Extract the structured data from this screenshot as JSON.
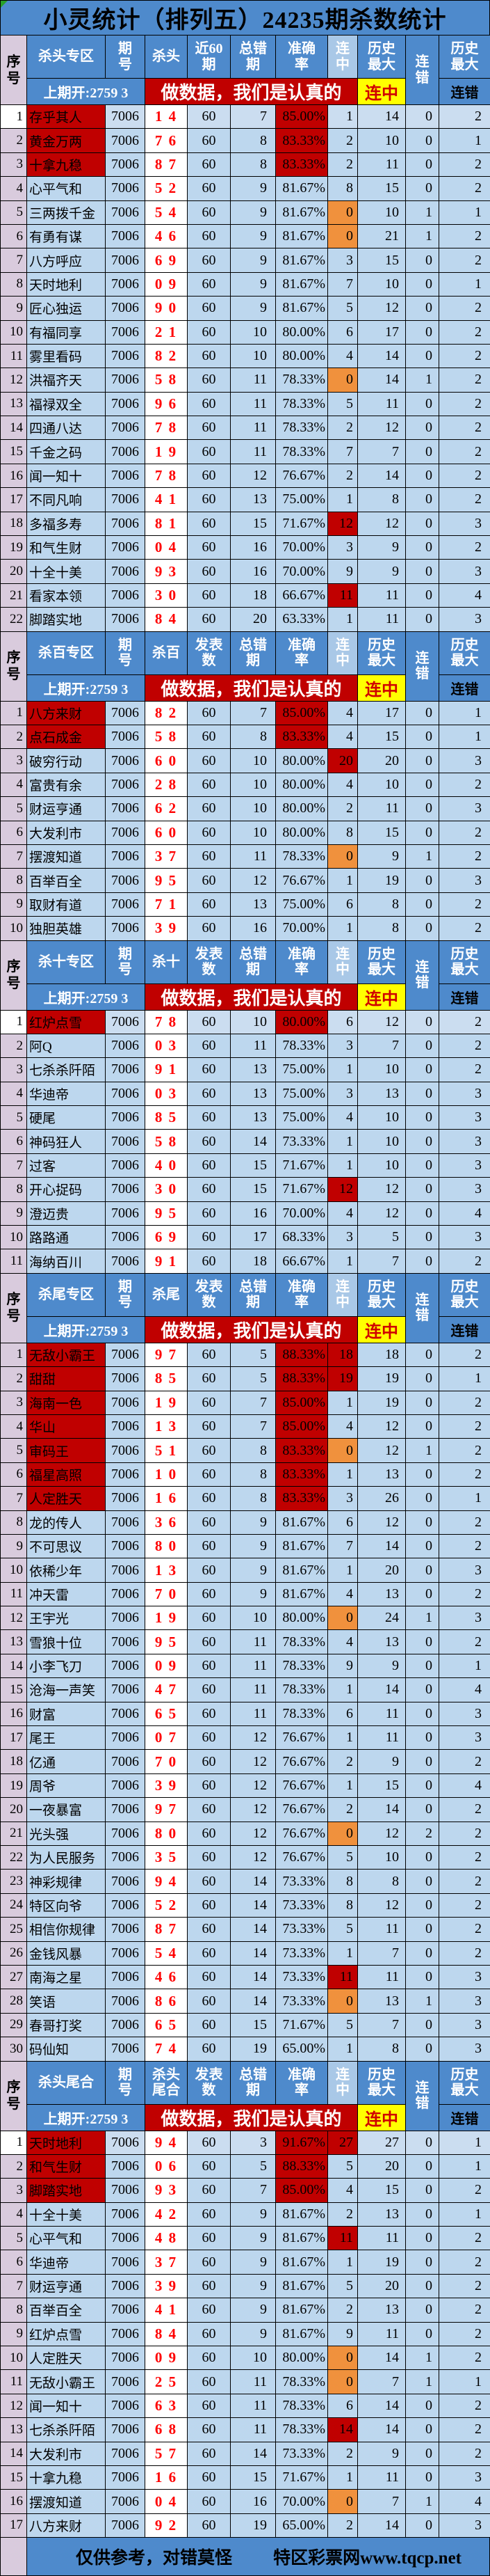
{
  "title": "小灵统计（排列五）24235期杀数统计",
  "colors": {
    "header_blue": "#4E8ACC",
    "cell_light_blue": "#BDD7EE",
    "serial_pink": "#D9CBDD",
    "highlight_dark_red": "#C00000",
    "highlight_orange": "#F0913D",
    "highlight_yellow": "#FFFF00",
    "kill_number_red": "#FF0000"
  },
  "header_common": {
    "serial": "序\n号",
    "qihao": "期\n号",
    "wrong": "总错\n期",
    "accuracy": "准确\n率",
    "lianzhong": "连\n中",
    "hist_max": "历史\n最大",
    "liancuo": "连\n错",
    "hist_max2": "历史\n最大",
    "liancuo_sub": "连错",
    "prev_draw": "上期开:2759 3",
    "banner": "做数据，我们是认真的",
    "lianzhong_yellow": "连中"
  },
  "footer": {
    "left": "仅供参考，对错莫怪",
    "right": "特区彩票网www.tqcp.net"
  },
  "sections": [
    {
      "zone": "杀头专区",
      "kill_label": "杀头",
      "count_label": "近60\n期",
      "rows": [
        [
          1,
          "存乎其人",
          "7006",
          "1 4",
          60,
          7,
          "85.00%",
          1,
          14,
          0,
          2,
          "naw"
        ],
        [
          2,
          "黄金万两",
          "7006",
          "7 6",
          60,
          8,
          "83.33%",
          2,
          10,
          0,
          1,
          "na"
        ],
        [
          3,
          "十拿九稳",
          "7006",
          "8 7",
          60,
          8,
          "83.33%",
          2,
          11,
          0,
          2,
          "na"
        ],
        [
          4,
          "心平气和",
          "7006",
          "5 2",
          60,
          9,
          "81.67%",
          8,
          15,
          0,
          2,
          ""
        ],
        [
          5,
          "三两拨千金",
          "7006",
          "5 4",
          60,
          9,
          "81.67%",
          0,
          10,
          1,
          1,
          "o"
        ],
        [
          6,
          "有勇有谋",
          "7006",
          "4 6",
          60,
          9,
          "81.67%",
          0,
          21,
          1,
          2,
          "o"
        ],
        [
          7,
          "八方呼应",
          "7006",
          "6 9",
          60,
          9,
          "81.67%",
          3,
          15,
          0,
          2,
          ""
        ],
        [
          8,
          "天时地利",
          "7006",
          "0 9",
          60,
          9,
          "81.67%",
          7,
          10,
          0,
          1,
          ""
        ],
        [
          9,
          "匠心独运",
          "7006",
          "9 0",
          60,
          9,
          "81.67%",
          5,
          12,
          0,
          2,
          ""
        ],
        [
          10,
          "有福同享",
          "7006",
          "2 1",
          60,
          10,
          "80.00%",
          6,
          17,
          0,
          2,
          ""
        ],
        [
          11,
          "雾里看码",
          "7006",
          "8 2",
          60,
          10,
          "80.00%",
          4,
          14,
          0,
          2,
          ""
        ],
        [
          12,
          "洪福齐天",
          "7006",
          "5 8",
          60,
          11,
          "78.33%",
          0,
          14,
          1,
          2,
          "o"
        ],
        [
          13,
          "福禄双全",
          "7006",
          "9 6",
          60,
          11,
          "78.33%",
          5,
          11,
          0,
          2,
          ""
        ],
        [
          14,
          "四通八达",
          "7006",
          "7 8",
          60,
          11,
          "78.33%",
          2,
          12,
          0,
          2,
          ""
        ],
        [
          15,
          "千金之码",
          "7006",
          "1 9",
          60,
          11,
          "78.33%",
          7,
          7,
          0,
          2,
          ""
        ],
        [
          16,
          "闻一知十",
          "7006",
          "7 8",
          60,
          12,
          "76.67%",
          2,
          14,
          0,
          2,
          ""
        ],
        [
          17,
          "不同凡响",
          "7006",
          "4 1",
          60,
          13,
          "75.00%",
          1,
          8,
          0,
          2,
          ""
        ],
        [
          18,
          "多福多寿",
          "7006",
          "8 1",
          60,
          15,
          "71.67%",
          12,
          12,
          0,
          3,
          "r"
        ],
        [
          19,
          "和气生财",
          "7006",
          "0 4",
          60,
          16,
          "70.00%",
          3,
          9,
          0,
          2,
          ""
        ],
        [
          20,
          "十全十美",
          "7006",
          "9 3",
          60,
          16,
          "70.00%",
          9,
          9,
          0,
          3,
          ""
        ],
        [
          21,
          "看家本领",
          "7006",
          "3 0",
          60,
          18,
          "66.67%",
          11,
          11,
          0,
          4,
          "r"
        ],
        [
          22,
          "脚踏实地",
          "7006",
          "8 4",
          60,
          20,
          "63.33%",
          1,
          11,
          0,
          3,
          ""
        ]
      ]
    },
    {
      "zone": "杀百专区",
      "kill_label": "杀百",
      "count_label": "发表\n数",
      "rows": [
        [
          1,
          "八方来财",
          "7006",
          "8 2",
          60,
          7,
          "85.00%",
          4,
          17,
          0,
          1,
          "na"
        ],
        [
          2,
          "点石成金",
          "7006",
          "5 8",
          60,
          8,
          "83.33%",
          4,
          15,
          0,
          1,
          "na"
        ],
        [
          3,
          "破穷行动",
          "7006",
          "6 0",
          60,
          10,
          "80.00%",
          20,
          20,
          0,
          3,
          "r"
        ],
        [
          4,
          "富贵有余",
          "7006",
          "2 8",
          60,
          10,
          "80.00%",
          4,
          10,
          0,
          2,
          ""
        ],
        [
          5,
          "财运亨通",
          "7006",
          "6 2",
          60,
          10,
          "80.00%",
          2,
          11,
          0,
          3,
          ""
        ],
        [
          6,
          "大发利市",
          "7006",
          "6 0",
          60,
          10,
          "80.00%",
          8,
          15,
          0,
          2,
          ""
        ],
        [
          7,
          "摆渡知道",
          "7006",
          "3 7",
          60,
          11,
          "78.33%",
          0,
          9,
          1,
          2,
          "o"
        ],
        [
          8,
          "百举百全",
          "7006",
          "9 5",
          60,
          12,
          "76.67%",
          1,
          19,
          0,
          3,
          ""
        ],
        [
          9,
          "取财有道",
          "7006",
          "7 1",
          60,
          13,
          "75.00%",
          6,
          8,
          0,
          2,
          ""
        ],
        [
          10,
          "独胆英雄",
          "7006",
          "3 9",
          60,
          16,
          "70.00%",
          1,
          8,
          0,
          2,
          ""
        ]
      ]
    },
    {
      "zone": "杀十专区",
      "kill_label": "杀十",
      "count_label": "发表\n数",
      "rows": [
        [
          1,
          "红炉点雪",
          "7006",
          "7 8",
          60,
          10,
          "80.00%",
          6,
          12,
          0,
          2,
          "naw"
        ],
        [
          2,
          "阿Q",
          "7006",
          "0 3",
          60,
          11,
          "78.33%",
          3,
          7,
          0,
          2,
          ""
        ],
        [
          3,
          "七杀杀阡陌",
          "7006",
          "9 1",
          60,
          13,
          "75.00%",
          1,
          10,
          0,
          2,
          ""
        ],
        [
          4,
          "华迪帝",
          "7006",
          "0 3",
          60,
          13,
          "75.00%",
          3,
          13,
          0,
          3,
          ""
        ],
        [
          5,
          "硬尾",
          "7006",
          "8 5",
          60,
          13,
          "75.00%",
          4,
          10,
          0,
          3,
          ""
        ],
        [
          6,
          "神码狂人",
          "7006",
          "5 8",
          60,
          14,
          "73.33%",
          1,
          10,
          0,
          3,
          ""
        ],
        [
          7,
          "过客",
          "7006",
          "4 0",
          60,
          15,
          "71.67%",
          1,
          10,
          0,
          3,
          ""
        ],
        [
          8,
          "开心捉码",
          "7006",
          "3 0",
          60,
          15,
          "71.67%",
          12,
          12,
          0,
          3,
          "r"
        ],
        [
          9,
          "澄迈贵",
          "7006",
          "9 5",
          60,
          16,
          "70.00%",
          4,
          12,
          0,
          4,
          ""
        ],
        [
          10,
          "路路通",
          "7006",
          "6 9",
          60,
          17,
          "68.33%",
          3,
          5,
          0,
          3,
          ""
        ],
        [
          11,
          "海纳百川",
          "7006",
          "9 1",
          60,
          18,
          "66.67%",
          1,
          7,
          0,
          2,
          ""
        ]
      ]
    },
    {
      "zone": "杀尾专区",
      "kill_label": "杀尾",
      "count_label": "发表\n数",
      "rows": [
        [
          1,
          "无敌小霸王",
          "7006",
          "9 7",
          60,
          5,
          "88.33%",
          18,
          18,
          0,
          2,
          "nar"
        ],
        [
          2,
          "甜甜",
          "7006",
          "8 5",
          60,
          5,
          "88.33%",
          19,
          19,
          0,
          1,
          "nar"
        ],
        [
          3,
          "海南一色",
          "7006",
          "1 9",
          60,
          7,
          "85.00%",
          1,
          19,
          0,
          2,
          "na"
        ],
        [
          4,
          "华山",
          "7006",
          "1 3",
          60,
          7,
          "85.00%",
          4,
          12,
          0,
          2,
          "na"
        ],
        [
          5,
          "审码王",
          "7006",
          "5 1",
          60,
          8,
          "83.33%",
          0,
          12,
          1,
          2,
          "nao"
        ],
        [
          6,
          "福星高照",
          "7006",
          "1 0",
          60,
          8,
          "83.33%",
          1,
          13,
          0,
          2,
          "na"
        ],
        [
          7,
          "人定胜天",
          "7006",
          "1 6",
          60,
          8,
          "83.33%",
          3,
          26,
          0,
          1,
          "na"
        ],
        [
          8,
          "龙的传人",
          "7006",
          "3 6",
          60,
          9,
          "81.67%",
          6,
          12,
          0,
          2,
          ""
        ],
        [
          9,
          "不可思议",
          "7006",
          "8 0",
          60,
          9,
          "81.67%",
          7,
          14,
          0,
          2,
          ""
        ],
        [
          10,
          "依稀少年",
          "7006",
          "1 3",
          60,
          9,
          "81.67%",
          1,
          20,
          0,
          3,
          ""
        ],
        [
          11,
          "冲天雷",
          "7006",
          "7 0",
          60,
          9,
          "81.67%",
          4,
          13,
          0,
          2,
          ""
        ],
        [
          12,
          "王宇光",
          "7006",
          "1 9",
          60,
          10,
          "80.00%",
          0,
          24,
          1,
          3,
          "o"
        ],
        [
          13,
          "雪狼十位",
          "7006",
          "9 5",
          60,
          11,
          "78.33%",
          4,
          13,
          0,
          2,
          ""
        ],
        [
          14,
          "小李飞刀",
          "7006",
          "0 9",
          60,
          11,
          "78.33%",
          9,
          9,
          0,
          1,
          ""
        ],
        [
          15,
          "沧海一声笑",
          "7006",
          "4 7",
          60,
          11,
          "78.33%",
          1,
          14,
          0,
          4,
          ""
        ],
        [
          16,
          "财富",
          "7006",
          "6 5",
          60,
          11,
          "78.33%",
          6,
          11,
          0,
          3,
          ""
        ],
        [
          17,
          "尾王",
          "7006",
          "0 7",
          60,
          12,
          "76.67%",
          1,
          11,
          0,
          3,
          ""
        ],
        [
          18,
          "亿通",
          "7006",
          "7 0",
          60,
          12,
          "76.67%",
          2,
          9,
          0,
          2,
          ""
        ],
        [
          19,
          "周爷",
          "7006",
          "3 9",
          60,
          12,
          "76.67%",
          1,
          15,
          0,
          4,
          ""
        ],
        [
          20,
          "一夜暴富",
          "7006",
          "9 7",
          60,
          12,
          "76.67%",
          2,
          14,
          0,
          2,
          ""
        ],
        [
          21,
          "光头强",
          "7006",
          "8 0",
          60,
          12,
          "76.67%",
          0,
          12,
          2,
          2,
          "o"
        ],
        [
          22,
          "为人民服务",
          "7006",
          "3 5",
          60,
          12,
          "76.67%",
          5,
          10,
          0,
          2,
          ""
        ],
        [
          23,
          "神彩规律",
          "7006",
          "9 4",
          60,
          14,
          "73.33%",
          8,
          8,
          0,
          2,
          ""
        ],
        [
          24,
          "特区向爷",
          "7006",
          "5 2",
          60,
          14,
          "73.33%",
          8,
          12,
          0,
          2,
          ""
        ],
        [
          25,
          "相信你规律",
          "7006",
          "8 7",
          60,
          14,
          "73.33%",
          5,
          11,
          0,
          2,
          ""
        ],
        [
          26,
          "金钱风暴",
          "7006",
          "5 4",
          60,
          14,
          "73.33%",
          1,
          7,
          0,
          2,
          ""
        ],
        [
          27,
          "南海之星",
          "7006",
          "4 6",
          60,
          14,
          "73.33%",
          11,
          11,
          0,
          3,
          "r"
        ],
        [
          28,
          "笑语",
          "7006",
          "8 6",
          60,
          14,
          "73.33%",
          0,
          13,
          1,
          3,
          "o"
        ],
        [
          29,
          "春哥打奖",
          "7006",
          "6 5",
          60,
          15,
          "71.67%",
          5,
          7,
          0,
          3,
          ""
        ],
        [
          30,
          "码仙知",
          "7006",
          "7 4",
          60,
          19,
          "65.00%",
          1,
          8,
          0,
          3,
          ""
        ]
      ]
    },
    {
      "zone": "杀头尾合",
      "kill_label": "杀头\n尾合",
      "count_label": "发表\n数",
      "rows": [
        [
          1,
          "天时地利",
          "7006",
          "9 4",
          60,
          3,
          "91.67%",
          27,
          27,
          0,
          1,
          "narw"
        ],
        [
          2,
          "和气生财",
          "7006",
          "0 6",
          60,
          5,
          "88.33%",
          5,
          20,
          0,
          1,
          "na"
        ],
        [
          3,
          "脚踏实地",
          "7006",
          "9 3",
          60,
          7,
          "85.00%",
          4,
          15,
          0,
          2,
          "na"
        ],
        [
          4,
          "十全十美",
          "7006",
          "4 2",
          60,
          9,
          "81.67%",
          2,
          13,
          0,
          1,
          ""
        ],
        [
          5,
          "心平气和",
          "7006",
          "4 8",
          60,
          9,
          "81.67%",
          11,
          11,
          0,
          2,
          "r"
        ],
        [
          6,
          "华迪帝",
          "7006",
          "3 7",
          60,
          9,
          "81.67%",
          1,
          19,
          0,
          2,
          ""
        ],
        [
          7,
          "财运亨通",
          "7006",
          "3 9",
          60,
          9,
          "81.67%",
          5,
          20,
          0,
          2,
          ""
        ],
        [
          8,
          "百举百全",
          "7006",
          "4 1",
          60,
          9,
          "81.67%",
          2,
          13,
          0,
          2,
          ""
        ],
        [
          9,
          "红炉点雪",
          "7006",
          "8 4",
          60,
          9,
          "81.67%",
          9,
          11,
          0,
          2,
          ""
        ],
        [
          10,
          "人定胜天",
          "7006",
          "0 9",
          60,
          10,
          "80.00%",
          0,
          14,
          1,
          2,
          "o"
        ],
        [
          11,
          "无敌小霸王",
          "7006",
          "2 5",
          60,
          11,
          "78.33%",
          0,
          7,
          1,
          1,
          "o"
        ],
        [
          12,
          "闻一知十",
          "7006",
          "6 3",
          60,
          11,
          "78.33%",
          6,
          14,
          0,
          2,
          ""
        ],
        [
          13,
          "七杀杀阡陌",
          "7006",
          "6 8",
          60,
          11,
          "78.33%",
          14,
          14,
          0,
          2,
          "r"
        ],
        [
          14,
          "大发利市",
          "7006",
          "5 7",
          60,
          14,
          "73.33%",
          2,
          9,
          0,
          2,
          ""
        ],
        [
          15,
          "十拿九稳",
          "7006",
          "1 6",
          60,
          15,
          "71.67%",
          1,
          11,
          0,
          3,
          ""
        ],
        [
          16,
          "摆渡知道",
          "7006",
          "0 4",
          60,
          16,
          "70.00%",
          0,
          7,
          1,
          4,
          "o"
        ],
        [
          17,
          "八方来财",
          "7006",
          "9 2",
          60,
          19,
          "65.00%",
          2,
          14,
          0,
          3,
          ""
        ]
      ]
    }
  ]
}
